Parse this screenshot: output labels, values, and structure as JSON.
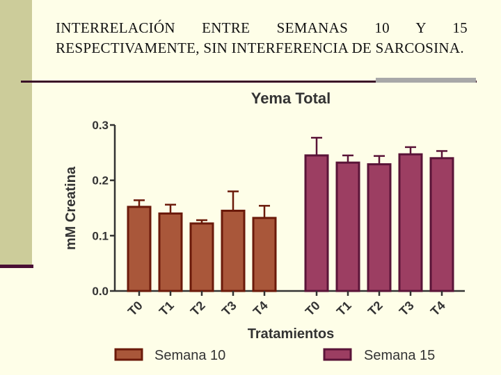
{
  "slide": {
    "title_text": "INTERRELACIÓN ENTRE SEMANAS 10 Y 15 RESPECTIVAMENTE, SIN INTERFERENCIA DE SARCOSINA."
  },
  "chart_data": {
    "type": "bar",
    "title": "Yema Total",
    "xlabel": "Tratamientos",
    "ylabel": "mM Creatina",
    "ylim": [
      0,
      0.3
    ],
    "yticks": [
      "0.0",
      "0.1",
      "0.2",
      "0.3"
    ],
    "categories": [
      "T0",
      "T1",
      "T2",
      "T3",
      "T4"
    ],
    "series": [
      {
        "name": "Semana 10",
        "color": "#a9573a",
        "edge": "#6b1a0a",
        "values": [
          0.152,
          0.14,
          0.122,
          0.145,
          0.132
        ],
        "errors": [
          0.012,
          0.016,
          0.006,
          0.035,
          0.022
        ]
      },
      {
        "name": "Semana 15",
        "color": "#9c3e62",
        "edge": "#5a1438",
        "values": [
          0.245,
          0.232,
          0.229,
          0.247,
          0.24
        ],
        "errors": [
          0.032,
          0.013,
          0.015,
          0.013,
          0.013
        ]
      }
    ],
    "legend": "bottom"
  }
}
